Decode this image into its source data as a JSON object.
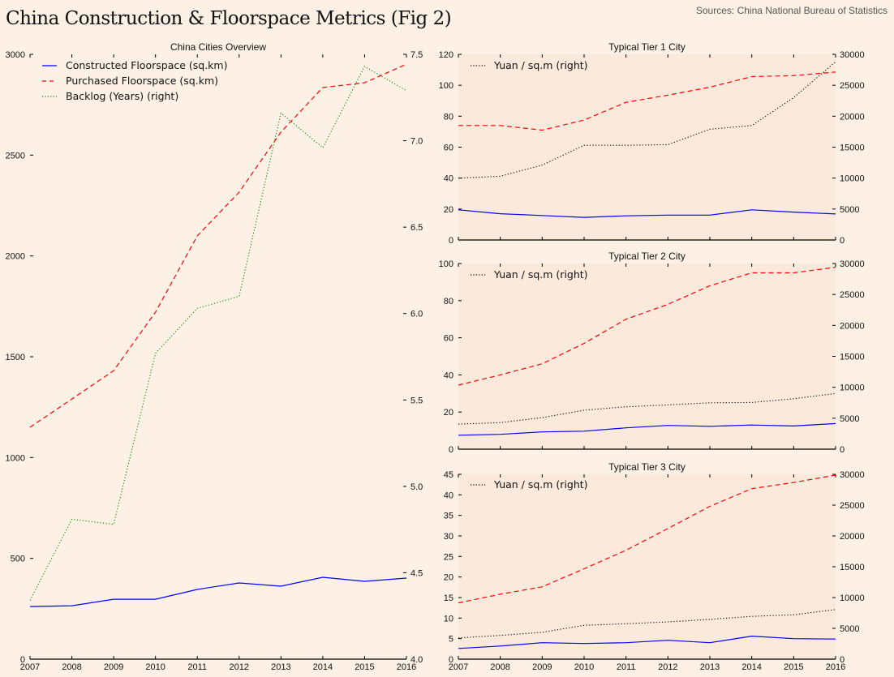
{
  "title": "China Construction & Floorspace Metrics (Fig 2)",
  "source": "Sources: China National Bureau of Statistics",
  "colors": {
    "constructed": "#0000ff",
    "purchased": "#ff0000",
    "backlog": "#008000",
    "price": "#000000",
    "panel_bg": "#fbe9dc",
    "page_bg": "#fdf1e6"
  },
  "chart_data": [
    {
      "type": "line",
      "title": "China Cities Overview",
      "x": [
        2007,
        2008,
        2009,
        2010,
        2011,
        2012,
        2013,
        2014,
        2015,
        2016
      ],
      "xticks": [
        "2007",
        "2008",
        "2009",
        "2010",
        "2011",
        "2012",
        "2013",
        "2014",
        "2015",
        "2016"
      ],
      "ylim": [
        0,
        3000
      ],
      "yticks": [
        "0",
        "500",
        "1000",
        "1500",
        "2000",
        "2500",
        "3000"
      ],
      "ylim_right": [
        4.0,
        7.5
      ],
      "yticks_right": [
        "4.0",
        "4.5",
        "5.0",
        "5.5",
        "6.0",
        "6.5",
        "7.0",
        "7.5"
      ],
      "legend_position": "top-left",
      "series": [
        {
          "name": "Constructed Floorspace (sq.km)",
          "axis": "left",
          "style": "solid",
          "color_key": "constructed",
          "values": [
            261,
            265,
            297,
            297,
            346,
            378,
            362,
            406,
            386,
            402
          ]
        },
        {
          "name": "Purchased Floorspace (sq.km)",
          "axis": "left",
          "style": "dashed",
          "color_key": "purchased",
          "values": [
            1150,
            1290,
            1431,
            1721,
            2099,
            2316,
            2614,
            2835,
            2859,
            2951
          ]
        },
        {
          "name": "Backlog (Years) (right)",
          "axis": "right",
          "style": "dotted",
          "color_key": "backlog",
          "values": [
            4.34,
            4.81,
            4.78,
            5.77,
            6.03,
            6.1,
            7.16,
            6.96,
            7.43,
            7.29
          ]
        }
      ],
      "legend": [
        "Constructed Floorspace (sq.km)",
        "Purchased Floorspace (sq.km)",
        "Backlog (Years) (right)"
      ]
    },
    {
      "type": "line",
      "title": "Typical Tier 1 City",
      "x": [
        2007,
        2008,
        2009,
        2010,
        2011,
        2012,
        2013,
        2014,
        2015,
        2016
      ],
      "xticks": [],
      "ylim": [
        0,
        120
      ],
      "yticks": [
        "0",
        "20",
        "40",
        "60",
        "80",
        "100",
        "120"
      ],
      "ylim_right": [
        0,
        30000
      ],
      "yticks_right": [
        "0",
        "5000",
        "10000",
        "15000",
        "20000",
        "25000",
        "30000"
      ],
      "legend_position": "top-left",
      "legend": [
        "Yuan / sq.m (right)"
      ],
      "series": [
        {
          "name": "Constructed Floorspace (sq.km)",
          "axis": "left",
          "style": "solid",
          "color_key": "constructed",
          "values": [
            19.5,
            17.0,
            15.8,
            14.6,
            15.6,
            16.1,
            16.1,
            19.5,
            18.0,
            16.8
          ]
        },
        {
          "name": "Purchased Floorspace (sq.km)",
          "axis": "left",
          "style": "dashed",
          "color_key": "purchased",
          "values": [
            74.0,
            74.0,
            71.0,
            77.5,
            89.0,
            93.6,
            98.8,
            105.6,
            106.2,
            108.5
          ]
        },
        {
          "name": "Yuan / sq.m (right)",
          "axis": "right",
          "style": "dotted",
          "color_key": "price",
          "values": [
            10000,
            10300,
            12100,
            15300,
            15300,
            15400,
            17900,
            18500,
            23000,
            28800
          ]
        }
      ]
    },
    {
      "type": "line",
      "title": "Typical Tier 2 City",
      "x": [
        2007,
        2008,
        2009,
        2010,
        2011,
        2012,
        2013,
        2014,
        2015,
        2016
      ],
      "xticks": [],
      "ylim": [
        0,
        100
      ],
      "yticks": [
        "0",
        "20",
        "40",
        "60",
        "80",
        "100"
      ],
      "ylim_right": [
        0,
        30000
      ],
      "yticks_right": [
        "0",
        "5000",
        "10000",
        "15000",
        "20000",
        "25000",
        "30000"
      ],
      "legend_position": "top-left",
      "legend": [
        "Yuan / sq.m (right)"
      ],
      "series": [
        {
          "name": "Constructed Floorspace (sq.km)",
          "axis": "left",
          "style": "solid",
          "color_key": "constructed",
          "values": [
            7.5,
            8.0,
            9.3,
            9.7,
            11.5,
            12.8,
            12.3,
            13.0,
            12.5,
            13.8
          ]
        },
        {
          "name": "Purchased Floorspace (sq.km)",
          "axis": "left",
          "style": "dashed",
          "color_key": "purchased",
          "values": [
            34.5,
            40.0,
            46.0,
            57.0,
            70.0,
            78.0,
            88.0,
            95.0,
            95.0,
            98.0
          ]
        },
        {
          "name": "Yuan / sq.m (right)",
          "axis": "right",
          "style": "dotted",
          "color_key": "price",
          "values": [
            4050,
            4300,
            5100,
            6300,
            6850,
            7150,
            7500,
            7550,
            8150,
            9000
          ]
        }
      ]
    },
    {
      "type": "line",
      "title": "Typical Tier 3 City",
      "x": [
        2007,
        2008,
        2009,
        2010,
        2011,
        2012,
        2013,
        2014,
        2015,
        2016
      ],
      "xticks": [
        "2007",
        "2008",
        "2009",
        "2010",
        "2011",
        "2012",
        "2013",
        "2014",
        "2015",
        "2016"
      ],
      "ylim": [
        0,
        45
      ],
      "yticks": [
        "0",
        "5",
        "10",
        "15",
        "20",
        "25",
        "30",
        "35",
        "40",
        "45"
      ],
      "ylim_right": [
        0,
        30000
      ],
      "yticks_right": [
        "0",
        "5000",
        "10000",
        "15000",
        "20000",
        "25000",
        "30000"
      ],
      "legend_position": "top-left",
      "legend": [
        "Yuan / sq.m (right)"
      ],
      "series": [
        {
          "name": "Constructed Floorspace (sq.km)",
          "axis": "left",
          "style": "solid",
          "color_key": "constructed",
          "values": [
            2.6,
            3.2,
            4.0,
            3.8,
            4.0,
            4.6,
            4.0,
            5.6,
            5.0,
            4.9
          ]
        },
        {
          "name": "Purchased Floorspace (sq.km)",
          "axis": "left",
          "style": "dashed",
          "color_key": "purchased",
          "values": [
            13.7,
            15.8,
            17.6,
            22.0,
            26.5,
            31.8,
            37.2,
            41.5,
            43.0,
            44.8
          ]
        },
        {
          "name": "Yuan / sq.m (right)",
          "axis": "right",
          "style": "dotted",
          "color_key": "price",
          "values": [
            3450,
            3850,
            4350,
            5500,
            5750,
            6050,
            6450,
            6950,
            7200,
            8050
          ]
        }
      ]
    }
  ]
}
